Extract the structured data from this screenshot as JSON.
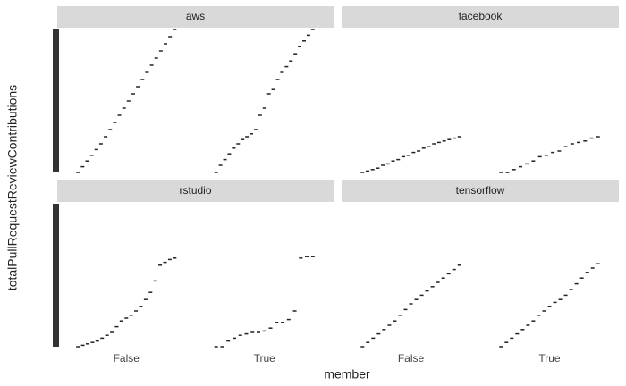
{
  "chart_data": {
    "type": "strip",
    "x_label": "member",
    "y_label": "totalPullRequestReviewContributions",
    "categories": [
      "False",
      "True"
    ],
    "ylim": [
      0,
      100
    ],
    "color": "#222222",
    "facets": [
      {
        "title": "aws",
        "values": [
          [
            0,
            4,
            8,
            12,
            16,
            20,
            25,
            30,
            35,
            40,
            45,
            50,
            55,
            60,
            65,
            70,
            75,
            80,
            85,
            90,
            95,
            100
          ],
          [
            0,
            5,
            9,
            13,
            17,
            20,
            23,
            25,
            27,
            30,
            40,
            45,
            55,
            58,
            65,
            70,
            74,
            78,
            83,
            88,
            92,
            96,
            100
          ]
        ]
      },
      {
        "title": "facebook",
        "values": [
          [
            0,
            1,
            2,
            3,
            5,
            6,
            8,
            9,
            11,
            12,
            14,
            15,
            17,
            18,
            20,
            21,
            22,
            23,
            24,
            25
          ],
          [
            0,
            0,
            2,
            4,
            6,
            8,
            11,
            12,
            14,
            15,
            18,
            20,
            21,
            22,
            24,
            25
          ]
        ]
      },
      {
        "title": "rstudio",
        "values": [
          [
            0,
            1,
            2,
            3,
            4,
            6,
            8,
            10,
            14,
            18,
            20,
            22,
            25,
            28,
            33,
            38,
            46,
            57,
            59,
            61,
            62
          ],
          [
            0,
            0,
            4,
            6,
            8,
            9,
            10,
            10,
            11,
            13,
            17,
            17,
            19,
            25,
            62,
            63,
            63
          ]
        ]
      },
      {
        "title": "tensorflow",
        "values": [
          [
            0,
            3,
            6,
            9,
            12,
            15,
            18,
            22,
            26,
            30,
            33,
            36,
            39,
            42,
            45,
            48,
            51,
            54,
            57
          ],
          [
            0,
            3,
            6,
            9,
            12,
            15,
            18,
            22,
            25,
            28,
            31,
            33,
            36,
            40,
            44,
            48,
            52,
            55,
            58
          ]
        ]
      }
    ]
  }
}
